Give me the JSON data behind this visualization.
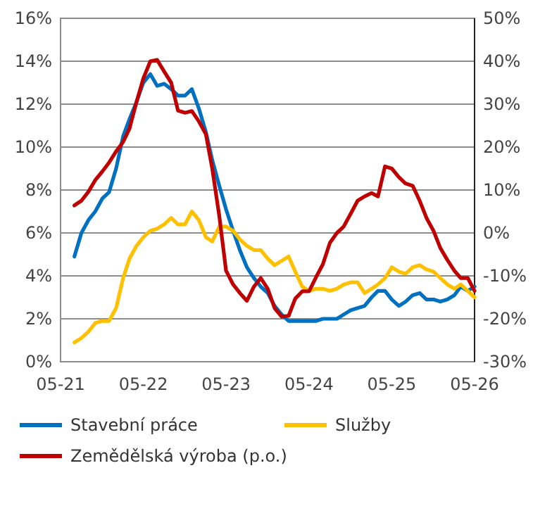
{
  "chart_data": {
    "type": "line",
    "x": [
      "2021-07",
      "2021-08",
      "2021-09",
      "2021-10",
      "2021-11",
      "2021-12",
      "2022-01",
      "2022-02",
      "2022-03",
      "2022-04",
      "2022-05",
      "2022-06",
      "2022-07",
      "2022-08",
      "2022-09",
      "2022-10",
      "2022-11",
      "2022-12",
      "2023-01",
      "2023-02",
      "2023-03",
      "2023-04",
      "2023-05",
      "2023-06",
      "2023-07",
      "2023-08",
      "2023-09",
      "2023-10",
      "2023-11",
      "2023-12",
      "2024-01",
      "2024-02",
      "2024-03",
      "2024-04",
      "2024-05",
      "2024-06",
      "2024-07",
      "2024-08",
      "2024-09",
      "2024-10",
      "2024-11",
      "2024-12",
      "2025-01",
      "2025-02",
      "2025-03",
      "2025-04",
      "2025-05",
      "2025-06",
      "2025-07",
      "2025-08",
      "2025-09",
      "2025-10",
      "2025-11",
      "2025-12",
      "2026-01",
      "2026-02",
      "2026-03",
      "2026-04",
      "2026-05"
    ],
    "series": [
      {
        "name": "Stavební práce",
        "color": "#0070c0",
        "values": [
          4.9,
          6.0,
          6.6,
          7.0,
          7.6,
          7.9,
          9.0,
          10.5,
          11.3,
          12.1,
          13.0,
          13.4,
          12.85,
          12.95,
          12.7,
          12.4,
          12.4,
          12.7,
          11.8,
          10.7,
          9.4,
          8.2,
          7.1,
          6.1,
          5.2,
          4.4,
          3.9,
          3.5,
          3.2,
          2.6,
          2.2,
          1.9,
          1.9,
          1.9,
          1.9,
          1.9,
          2.0,
          2.0,
          2.0,
          2.2,
          2.4,
          2.5,
          2.6,
          3.0,
          3.3,
          3.3,
          2.9,
          2.6,
          2.8,
          3.1,
          3.2,
          2.9,
          2.9,
          2.8,
          2.9,
          3.1,
          3.5,
          3.3,
          3.5
        ]
      },
      {
        "name": "Služby",
        "color": "#ffc000",
        "values": [
          0.9,
          1.1,
          1.4,
          1.8,
          1.9,
          1.9,
          2.5,
          3.9,
          4.8,
          5.4,
          5.8,
          6.1,
          6.2,
          6.4,
          6.7,
          6.4,
          6.4,
          7.0,
          6.6,
          5.8,
          5.6,
          6.3,
          6.3,
          6.1,
          5.7,
          5.4,
          5.2,
          5.2,
          4.8,
          4.5,
          4.7,
          4.9,
          4.2,
          3.5,
          3.3,
          3.4,
          3.4,
          3.3,
          3.4,
          3.6,
          3.7,
          3.7,
          3.2,
          3.4,
          3.6,
          3.9,
          4.4,
          4.2,
          4.1,
          4.4,
          4.5,
          4.3,
          4.2,
          3.9,
          3.6,
          3.4,
          3.6,
          3.3,
          3.0
        ]
      },
      {
        "name": "Zemědělská výroba (p.o.)",
        "color": "#c00000",
        "axis": "y2",
        "values": [
          6.4,
          7.5,
          9.6,
          12.3,
          14.3,
          16.4,
          19.0,
          21.2,
          24.3,
          30.5,
          36.0,
          40.0,
          40.3,
          37.6,
          35.0,
          28.5,
          28.0,
          28.4,
          26.0,
          23.0,
          15.0,
          4.0,
          -8.8,
          -12.0,
          -14.0,
          -15.8,
          -12.5,
          -10.5,
          -13.0,
          -17.5,
          -19.5,
          -19.3,
          -15.3,
          -13.6,
          -13.6,
          -10.3,
          -7.3,
          -2.3,
          0,
          1.5,
          4.5,
          7.5,
          8.5,
          9.3,
          8.5,
          15.5,
          15.0,
          13.0,
          11.5,
          11.0,
          7.5,
          3.5,
          0.5,
          -3.5,
          -6.3,
          -8.8,
          -10.5,
          -10.5,
          -13.5
        ]
      }
    ],
    "xlim": [
      "2021-05",
      "2026-05"
    ],
    "xticks": [
      {
        "value": "2021-05",
        "label": "05-21"
      },
      {
        "value": "2022-05",
        "label": "05-22"
      },
      {
        "value": "2023-05",
        "label": "05-23"
      },
      {
        "value": "2024-05",
        "label": "05-24"
      },
      {
        "value": "2025-05",
        "label": "05-25"
      },
      {
        "value": "2026-05",
        "label": "05-26"
      }
    ],
    "ylim": [
      0,
      16
    ],
    "yticks": [
      {
        "value": 0,
        "label": "0%"
      },
      {
        "value": 2,
        "label": "2%"
      },
      {
        "value": 4,
        "label": "4%"
      },
      {
        "value": 6,
        "label": "6%"
      },
      {
        "value": 8,
        "label": "8%"
      },
      {
        "value": 10,
        "label": "10%"
      },
      {
        "value": 12,
        "label": "12%"
      },
      {
        "value": 14,
        "label": "14%"
      },
      {
        "value": 16,
        "label": "16%"
      }
    ],
    "y2lim": [
      -30,
      50
    ],
    "y2ticks": [
      {
        "value": -30,
        "label": "-30%"
      },
      {
        "value": -20,
        "label": "-20%"
      },
      {
        "value": -10,
        "label": "-10%"
      },
      {
        "value": 0,
        "label": "0%"
      },
      {
        "value": 10,
        "label": "10%"
      },
      {
        "value": 20,
        "label": "20%"
      },
      {
        "value": 30,
        "label": "30%"
      },
      {
        "value": 40,
        "label": "40%"
      },
      {
        "value": 50,
        "label": "50%"
      }
    ],
    "grid": "y",
    "legend": "bottom",
    "marker": "none",
    "line_style": "solid"
  }
}
